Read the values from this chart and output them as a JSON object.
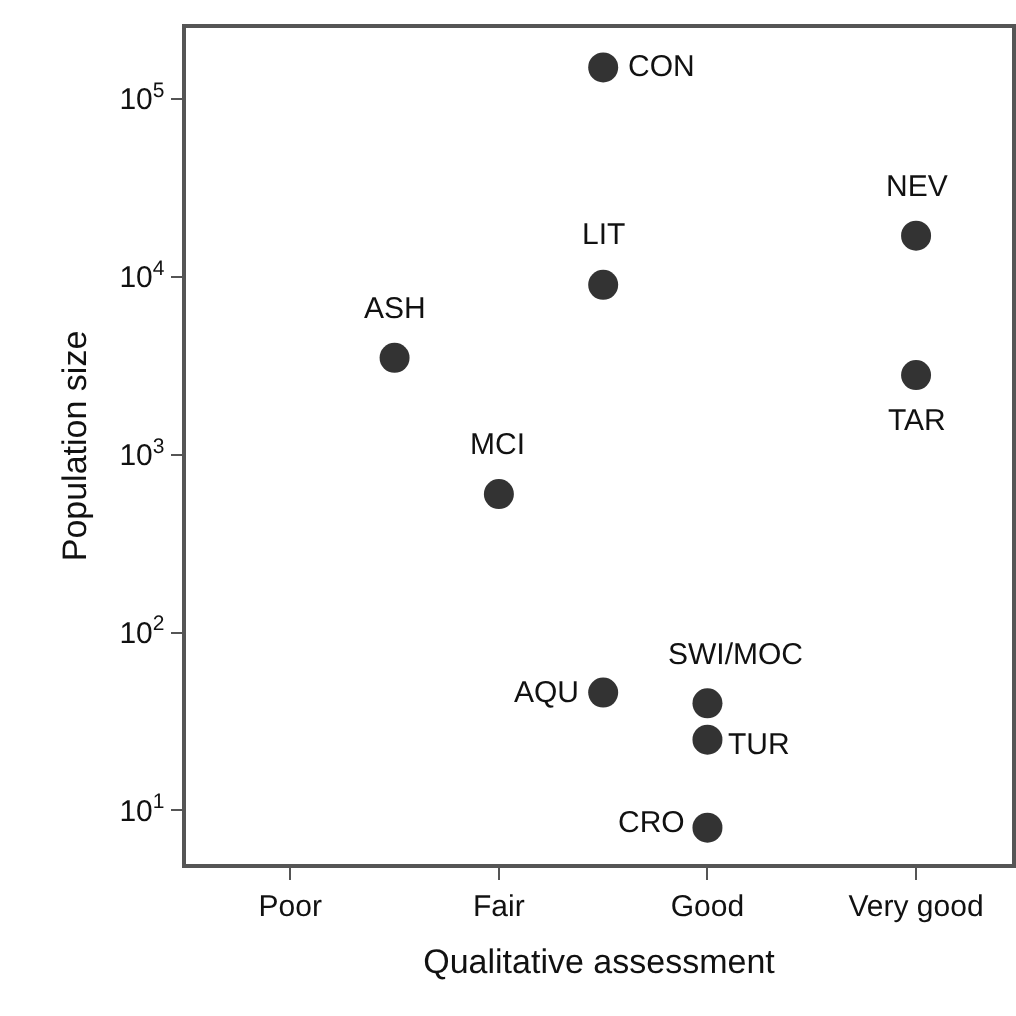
{
  "chart_data": {
    "type": "scatter",
    "xlabel": "Qualitative assessment",
    "ylabel": "Population size",
    "categories": [
      "Poor",
      null,
      "Fair",
      null,
      "Good",
      null,
      "Very good"
    ],
    "series": [
      {
        "color": "#333333",
        "values": [
          null,
          3500,
          600,
          150000,
          40,
          null,
          17000
        ],
        "value_labels": [
          null,
          "ASH",
          "MCI",
          "CON",
          "SWI/MOC",
          null,
          "NEV"
        ]
      },
      {
        "color": "#333333",
        "values": [
          null,
          null,
          null,
          9000,
          25,
          null,
          2800
        ],
        "value_labels": [
          null,
          null,
          null,
          "LIT",
          "TUR",
          null,
          "TAR"
        ]
      },
      {
        "color": "#333333",
        "values": [
          null,
          null,
          null,
          46,
          8,
          null,
          null
        ],
        "value_labels": [
          null,
          null,
          null,
          "AQU",
          "CRO",
          null,
          null
        ]
      }
    ],
    "marker": "circle",
    "log": "y",
    "grid": false,
    "ylim": [
      5.0,
      250000
    ],
    "yticks": [
      {
        "value": 10,
        "label": "10$^{1}$"
      },
      {
        "value": 100,
        "label": "10$^{2}$"
      },
      {
        "value": 1000,
        "label": "10$^{3}$"
      },
      {
        "value": 10000,
        "label": "10$^{4}$"
      },
      {
        "value": 100000,
        "label": "10$^{5}$"
      }
    ]
  }
}
